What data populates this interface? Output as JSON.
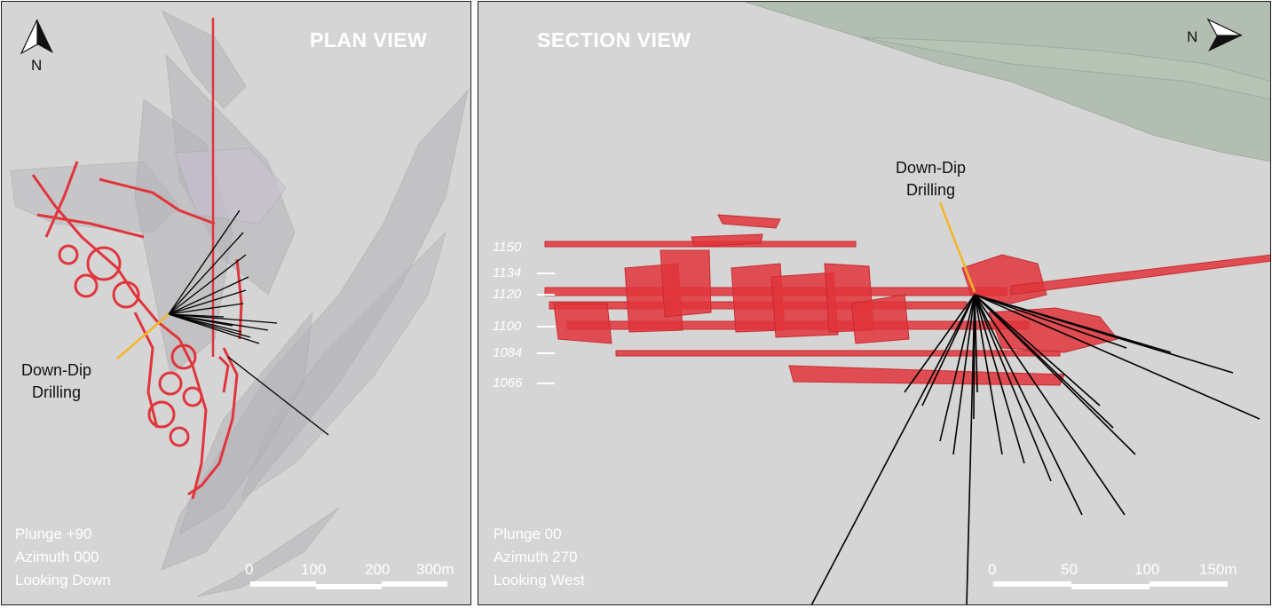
{
  "plan": {
    "title": "PLAN VIEW",
    "north_label": "N",
    "info": [
      "Plunge +90",
      "Azimuth 000",
      "Looking Down"
    ],
    "callout": [
      "Down-Dip",
      "Drilling"
    ],
    "scale": [
      "0",
      "100",
      "200",
      "300m"
    ]
  },
  "section": {
    "title": "SECTION VIEW",
    "north_label": "N",
    "info": [
      "Plunge 00",
      "Azimuth 270",
      "Looking West"
    ],
    "callout": [
      "Down-Dip",
      "Drilling"
    ],
    "scale": [
      "0",
      "50",
      "100",
      "150m"
    ],
    "elevations": [
      "1150",
      "1134",
      "1120",
      "1100",
      "1084",
      "1066"
    ]
  },
  "colors": {
    "background": "#d5d5d5",
    "workings": "#e0353b",
    "drillholes": "#000000",
    "callout_line": "#f5b428",
    "orebody": "#b8b8bd",
    "surface": "#a9b8a8"
  },
  "icons": {
    "plan_north": "north-arrow-icon",
    "section_north": "north-arrow-icon"
  }
}
